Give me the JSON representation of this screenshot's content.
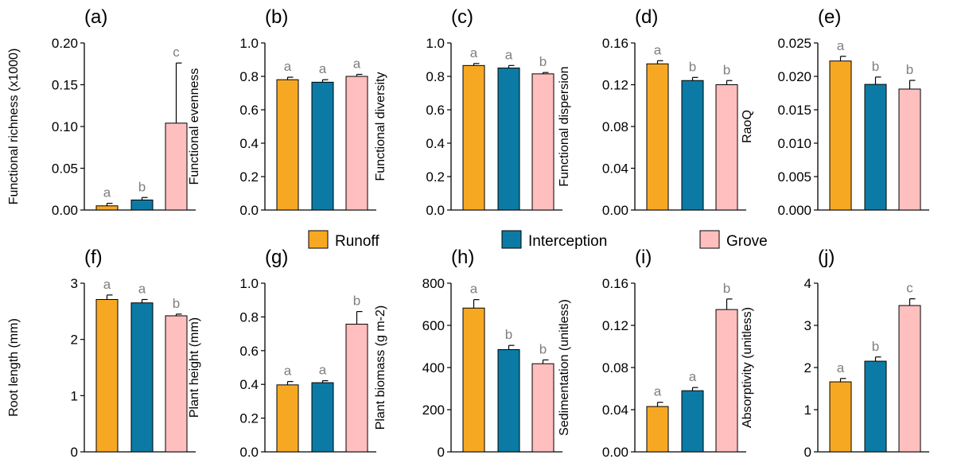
{
  "chart_data": [
    {
      "panel": "(a)",
      "type": "bar",
      "ylabel": "Functional richness (x1000)",
      "ylim": [
        0,
        0.2
      ],
      "yticks": [
        "0.00",
        "0.05",
        "0.10",
        "0.15",
        "0.20"
      ],
      "values": [
        0.005,
        0.012,
        0.104
      ],
      "errors": [
        0.003,
        0.003,
        0.072
      ],
      "letters": [
        "a",
        "b",
        "c"
      ]
    },
    {
      "panel": "(b)",
      "type": "bar",
      "ylabel": "Functional evenness",
      "ylim": [
        0,
        1.0
      ],
      "yticks": [
        "0.0",
        "0.2",
        "0.4",
        "0.6",
        "0.8",
        "1.0"
      ],
      "values": [
        0.78,
        0.765,
        0.8
      ],
      "errors": [
        0.015,
        0.015,
        0.012
      ],
      "letters": [
        "a",
        "a",
        "a"
      ]
    },
    {
      "panel": "(c)",
      "type": "bar",
      "ylabel": "Functional diversity",
      "ylim": [
        0,
        1.0
      ],
      "yticks": [
        "0.0",
        "0.2",
        "0.4",
        "0.6",
        "0.8",
        "1.0"
      ],
      "values": [
        0.865,
        0.85,
        0.815
      ],
      "errors": [
        0.012,
        0.015,
        0.008
      ],
      "letters": [
        "a",
        "a",
        "b"
      ]
    },
    {
      "panel": "(d)",
      "type": "bar",
      "ylabel": "Functional dispersion",
      "ylim": [
        0,
        0.16
      ],
      "yticks": [
        "0.00",
        "0.04",
        "0.08",
        "0.12",
        "0.16"
      ],
      "values": [
        0.14,
        0.124,
        0.12
      ],
      "errors": [
        0.003,
        0.003,
        0.004
      ],
      "letters": [
        "a",
        "b",
        "b"
      ]
    },
    {
      "panel": "(e)",
      "type": "bar",
      "ylabel": "RaoQ",
      "ylim": [
        0,
        0.025
      ],
      "yticks": [
        "0.000",
        "0.005",
        "0.010",
        "0.015",
        "0.020",
        "0.025"
      ],
      "values": [
        0.0223,
        0.0188,
        0.0181
      ],
      "errors": [
        0.0007,
        0.0011,
        0.0013
      ],
      "letters": [
        "a",
        "b",
        "b"
      ]
    },
    {
      "panel": "(f)",
      "type": "bar",
      "ylabel": "Root length (mm)",
      "ylim": [
        0,
        3
      ],
      "yticks": [
        "0",
        "1",
        "2",
        "3"
      ],
      "values": [
        2.71,
        2.65,
        2.42
      ],
      "errors": [
        0.08,
        0.06,
        0.03
      ],
      "letters": [
        "a",
        "a",
        "b"
      ]
    },
    {
      "panel": "(g)",
      "type": "bar",
      "ylabel": "Plant height (mm)",
      "ylim": [
        0,
        1.0
      ],
      "yticks": [
        "0.0",
        "0.2",
        "0.4",
        "0.6",
        "0.8",
        "1.0"
      ],
      "values": [
        0.397,
        0.41,
        0.757
      ],
      "errors": [
        0.02,
        0.012,
        0.075
      ],
      "letters": [
        "a",
        "a",
        "b"
      ]
    },
    {
      "panel": "(h)",
      "type": "bar",
      "ylabel": "Plant biomass (g m-2)",
      "ylim": [
        0,
        800
      ],
      "yticks": [
        "0",
        "200",
        "400",
        "600",
        "800"
      ],
      "values": [
        682,
        485,
        418
      ],
      "errors": [
        40,
        20,
        18
      ],
      "letters": [
        "a",
        "b",
        "b"
      ]
    },
    {
      "panel": "(i)",
      "type": "bar",
      "ylabel": "Sedimentation (unitless)",
      "ylim": [
        0,
        0.16
      ],
      "yticks": [
        "0.00",
        "0.04",
        "0.08",
        "0.12",
        "0.16"
      ],
      "values": [
        0.043,
        0.058,
        0.135
      ],
      "errors": [
        0.004,
        0.003,
        0.01
      ],
      "letters": [
        "a",
        "a",
        "b"
      ]
    },
    {
      "panel": "(j)",
      "type": "bar",
      "ylabel": "Absorptivity (unitless)",
      "ylim": [
        0,
        4
      ],
      "yticks": [
        "0",
        "1",
        "2",
        "3",
        "4"
      ],
      "values": [
        1.66,
        2.15,
        3.47
      ],
      "errors": [
        0.08,
        0.1,
        0.16
      ],
      "letters": [
        "a",
        "b",
        "c"
      ]
    }
  ],
  "legend": {
    "items": [
      {
        "label": "Runoff",
        "color": "#F7A823"
      },
      {
        "label": "Interception",
        "color": "#0B7BA5"
      },
      {
        "label": "Grove",
        "color": "#FFBFBE"
      }
    ]
  }
}
